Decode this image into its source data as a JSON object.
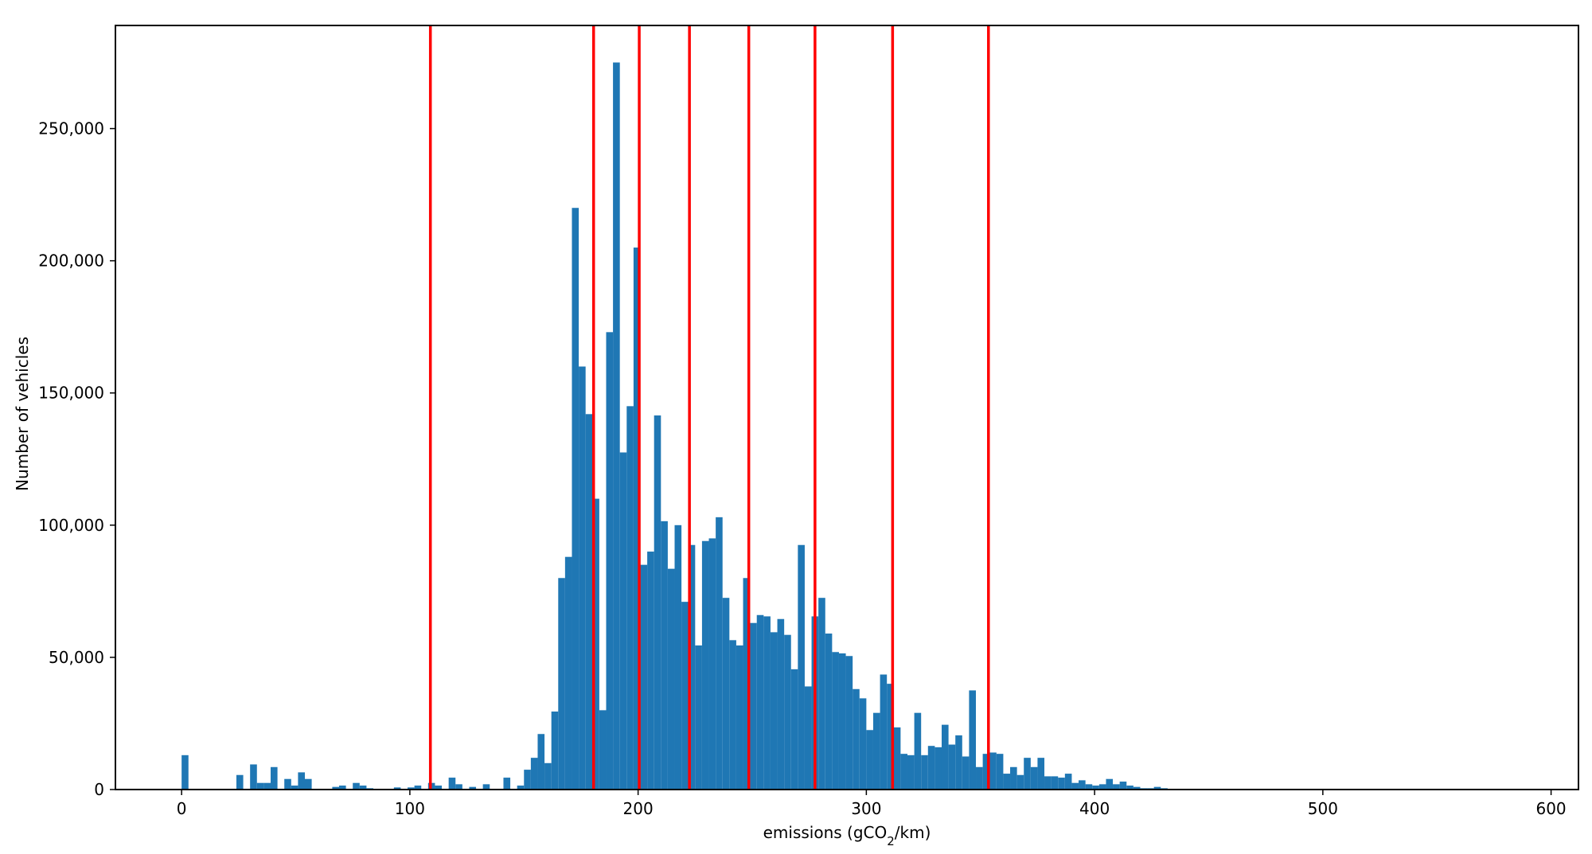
{
  "chart_data": {
    "type": "bar",
    "xlabel": "emissions (gCO2/km)",
    "xlabel_parts": {
      "before": "emissions (gCO",
      "sub": "2",
      "after": "/km)"
    },
    "ylabel": "Number of vehicles",
    "xlim": [
      -29,
      612
    ],
    "ylim": [
      0,
      289000
    ],
    "xticks": [
      0,
      100,
      200,
      300,
      400,
      500,
      600
    ],
    "xtick_labels": [
      "0",
      "100",
      "200",
      "300",
      "400",
      "500",
      "600"
    ],
    "yticks": [
      0,
      50000,
      100000,
      150000,
      200000,
      250000
    ],
    "ytick_labels": [
      "0",
      "50,000",
      "100,000",
      "150,000",
      "200,000",
      "250,000"
    ],
    "bar_color": "#1f77b4",
    "vline_color": "#ff0000",
    "bin_width": 3,
    "bins": [
      {
        "x": 0,
        "y": 13000
      },
      {
        "x": 24,
        "y": 5500
      },
      {
        "x": 30,
        "y": 9500
      },
      {
        "x": 33,
        "y": 2500
      },
      {
        "x": 36,
        "y": 2500
      },
      {
        "x": 39,
        "y": 8500
      },
      {
        "x": 45,
        "y": 4000
      },
      {
        "x": 48,
        "y": 1500
      },
      {
        "x": 51,
        "y": 6500
      },
      {
        "x": 54,
        "y": 4000
      },
      {
        "x": 66,
        "y": 1000
      },
      {
        "x": 69,
        "y": 1500
      },
      {
        "x": 75,
        "y": 2500
      },
      {
        "x": 78,
        "y": 1500
      },
      {
        "x": 81,
        "y": 500
      },
      {
        "x": 93,
        "y": 800
      },
      {
        "x": 99,
        "y": 800
      },
      {
        "x": 102,
        "y": 1500
      },
      {
        "x": 108,
        "y": 2500
      },
      {
        "x": 111,
        "y": 1500
      },
      {
        "x": 117,
        "y": 4500
      },
      {
        "x": 120,
        "y": 2000
      },
      {
        "x": 126,
        "y": 1000
      },
      {
        "x": 132,
        "y": 2000
      },
      {
        "x": 141,
        "y": 4500
      },
      {
        "x": 147,
        "y": 1500
      },
      {
        "x": 150,
        "y": 7500
      },
      {
        "x": 153,
        "y": 12000
      },
      {
        "x": 156,
        "y": 21000
      },
      {
        "x": 159,
        "y": 10000
      },
      {
        "x": 162,
        "y": 29500
      },
      {
        "x": 165,
        "y": 80000
      },
      {
        "x": 168,
        "y": 88000
      },
      {
        "x": 171,
        "y": 220000
      },
      {
        "x": 174,
        "y": 160000
      },
      {
        "x": 177,
        "y": 142000
      },
      {
        "x": 180,
        "y": 110000
      },
      {
        "x": 183,
        "y": 30000
      },
      {
        "x": 186,
        "y": 173000
      },
      {
        "x": 189,
        "y": 275000
      },
      {
        "x": 192,
        "y": 127500
      },
      {
        "x": 195,
        "y": 145000
      },
      {
        "x": 198,
        "y": 205000
      },
      {
        "x": 201,
        "y": 85000
      },
      {
        "x": 204,
        "y": 90000
      },
      {
        "x": 207,
        "y": 141500
      },
      {
        "x": 210,
        "y": 101500
      },
      {
        "x": 213,
        "y": 83500
      },
      {
        "x": 216,
        "y": 100000
      },
      {
        "x": 219,
        "y": 71000
      },
      {
        "x": 222,
        "y": 92500
      },
      {
        "x": 225,
        "y": 54500
      },
      {
        "x": 228,
        "y": 94000
      },
      {
        "x": 231,
        "y": 95000
      },
      {
        "x": 234,
        "y": 103000
      },
      {
        "x": 237,
        "y": 72500
      },
      {
        "x": 240,
        "y": 56500
      },
      {
        "x": 243,
        "y": 54500
      },
      {
        "x": 246,
        "y": 80000
      },
      {
        "x": 249,
        "y": 63000
      },
      {
        "x": 252,
        "y": 66000
      },
      {
        "x": 255,
        "y": 65500
      },
      {
        "x": 258,
        "y": 59500
      },
      {
        "x": 261,
        "y": 64500
      },
      {
        "x": 264,
        "y": 58500
      },
      {
        "x": 267,
        "y": 45500
      },
      {
        "x": 270,
        "y": 92500
      },
      {
        "x": 273,
        "y": 39000
      },
      {
        "x": 276,
        "y": 65500
      },
      {
        "x": 279,
        "y": 72500
      },
      {
        "x": 282,
        "y": 59000
      },
      {
        "x": 285,
        "y": 52000
      },
      {
        "x": 288,
        "y": 51500
      },
      {
        "x": 291,
        "y": 50500
      },
      {
        "x": 294,
        "y": 38000
      },
      {
        "x": 297,
        "y": 34500
      },
      {
        "x": 300,
        "y": 22500
      },
      {
        "x": 303,
        "y": 29000
      },
      {
        "x": 306,
        "y": 43500
      },
      {
        "x": 309,
        "y": 40000
      },
      {
        "x": 312,
        "y": 23500
      },
      {
        "x": 315,
        "y": 13500
      },
      {
        "x": 318,
        "y": 13000
      },
      {
        "x": 321,
        "y": 29000
      },
      {
        "x": 324,
        "y": 13000
      },
      {
        "x": 327,
        "y": 16500
      },
      {
        "x": 330,
        "y": 16000
      },
      {
        "x": 333,
        "y": 24500
      },
      {
        "x": 336,
        "y": 17000
      },
      {
        "x": 339,
        "y": 20500
      },
      {
        "x": 342,
        "y": 12500
      },
      {
        "x": 345,
        "y": 37500
      },
      {
        "x": 348,
        "y": 8500
      },
      {
        "x": 351,
        "y": 13500
      },
      {
        "x": 354,
        "y": 14000
      },
      {
        "x": 357,
        "y": 13500
      },
      {
        "x": 360,
        "y": 6000
      },
      {
        "x": 363,
        "y": 8500
      },
      {
        "x": 366,
        "y": 5500
      },
      {
        "x": 369,
        "y": 12000
      },
      {
        "x": 372,
        "y": 8500
      },
      {
        "x": 375,
        "y": 12000
      },
      {
        "x": 378,
        "y": 5000
      },
      {
        "x": 381,
        "y": 5000
      },
      {
        "x": 384,
        "y": 4500
      },
      {
        "x": 387,
        "y": 6000
      },
      {
        "x": 390,
        "y": 2500
      },
      {
        "x": 393,
        "y": 3500
      },
      {
        "x": 396,
        "y": 2000
      },
      {
        "x": 399,
        "y": 1500
      },
      {
        "x": 402,
        "y": 2000
      },
      {
        "x": 405,
        "y": 4000
      },
      {
        "x": 408,
        "y": 2000
      },
      {
        "x": 411,
        "y": 3000
      },
      {
        "x": 414,
        "y": 1500
      },
      {
        "x": 417,
        "y": 1000
      },
      {
        "x": 420,
        "y": 500
      },
      {
        "x": 423,
        "y": 500
      },
      {
        "x": 426,
        "y": 1000
      },
      {
        "x": 429,
        "y": 500
      }
    ],
    "vlines": [
      109,
      180.5,
      200.5,
      222.5,
      248.5,
      277.5,
      311.5,
      353.5
    ]
  }
}
